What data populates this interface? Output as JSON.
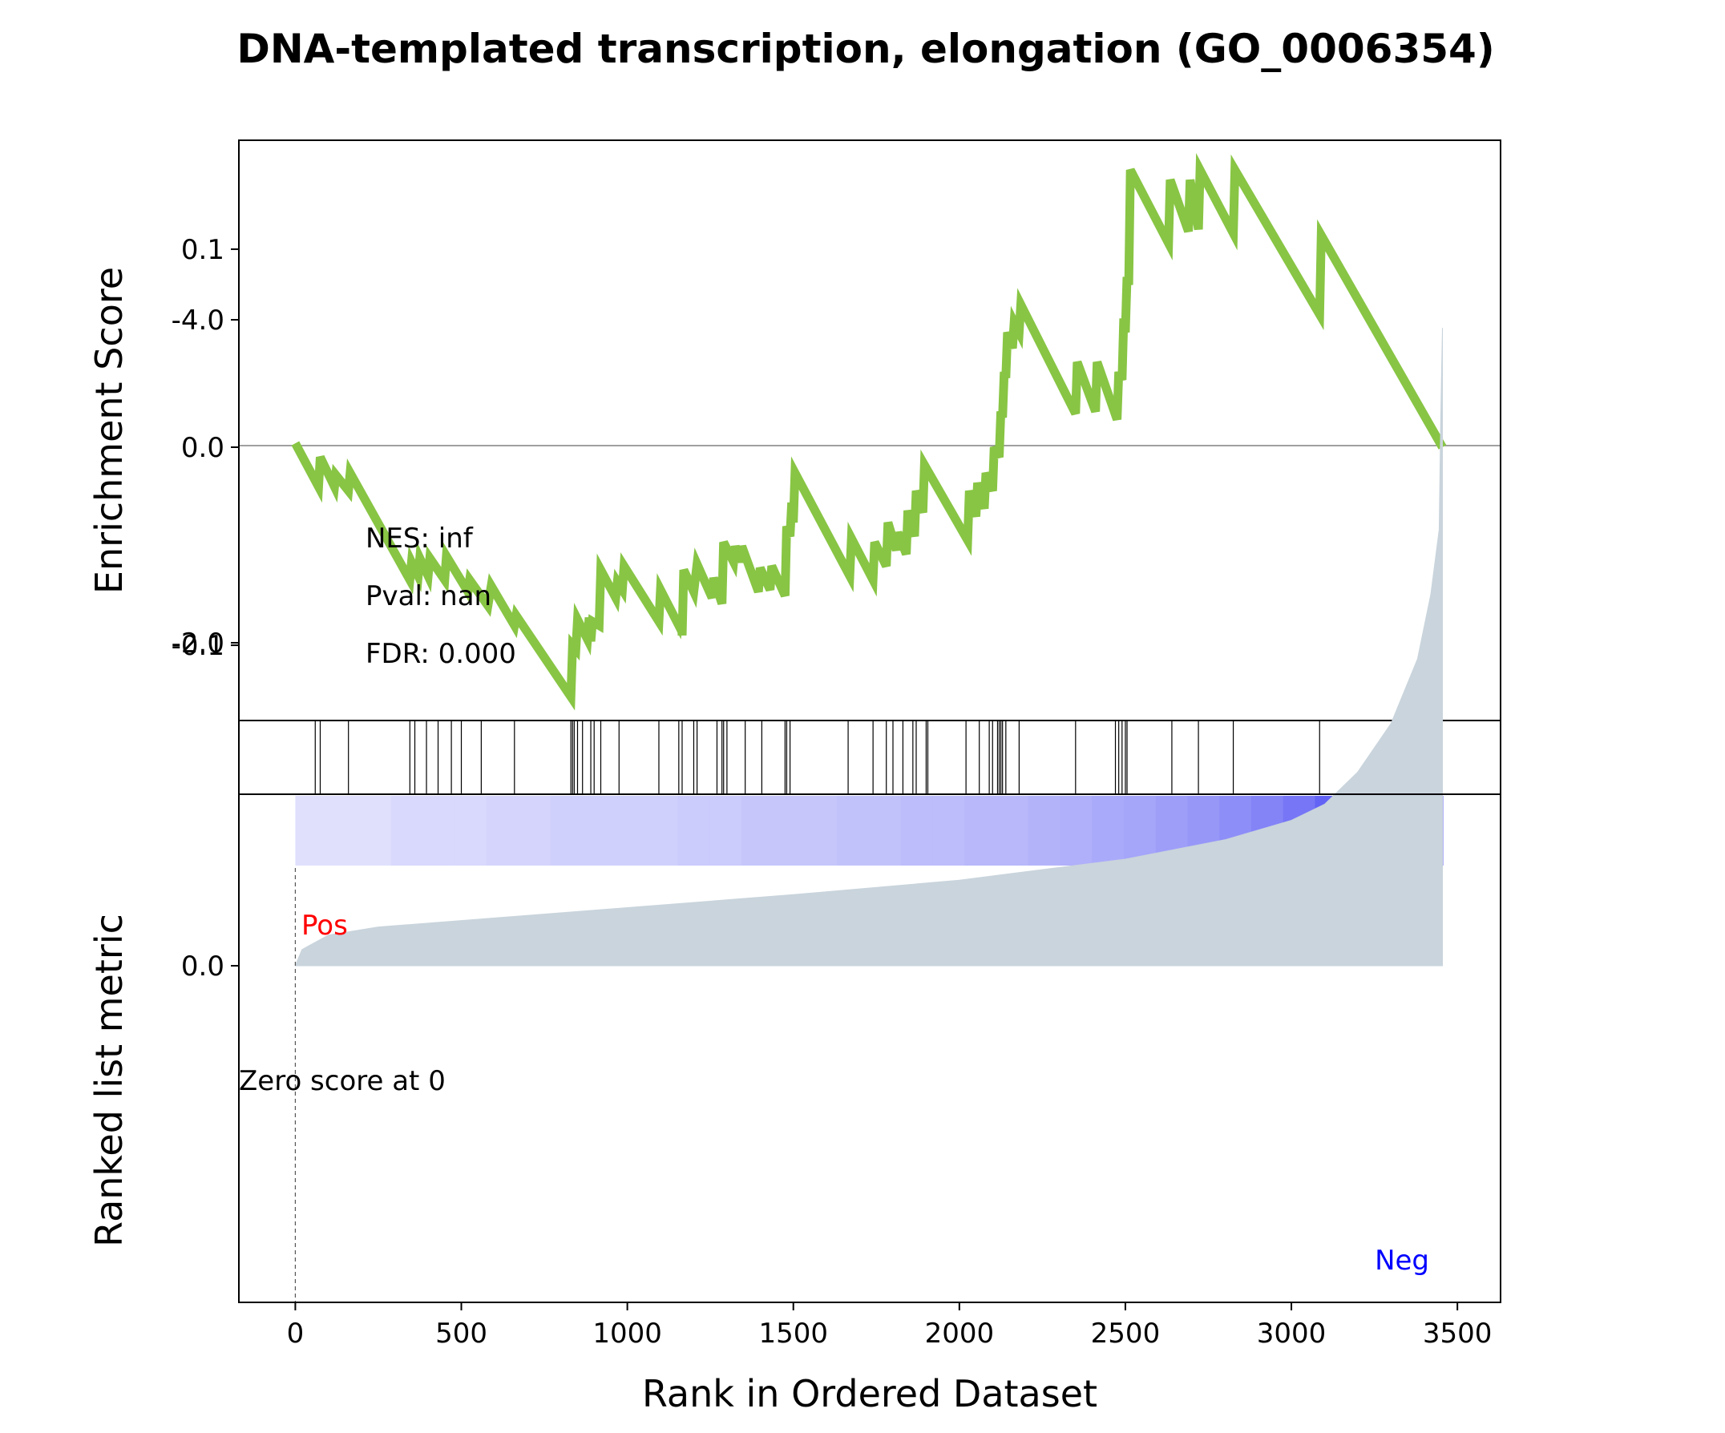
{
  "chart_data": {
    "type": "line",
    "title": "DNA-templated transcription, elongation (GO_0006354)",
    "xlabel": "Rank in Ordered Dataset",
    "x_ticks": [
      "0",
      "500",
      "1000",
      "1500",
      "2000",
      "2500",
      "3000",
      "3500"
    ],
    "x_tick_values": [
      0,
      500,
      1000,
      1500,
      2000,
      2500,
      3000,
      3500
    ],
    "xlim": [
      -170,
      3630
    ],
    "colors": {
      "es_line": "#88c544",
      "rank_fill": "#c9d4dc",
      "pos": "#ff0000",
      "neg": "#0000ff",
      "heat_start": "#ececfe",
      "heat_end": "#0000ee"
    },
    "es_panel": {
      "ylabel": "Enrichment Score",
      "y_ticks": [
        "0.1",
        "0.0",
        "-0.1"
      ],
      "y_tick_values": [
        0.1,
        0.0,
        -0.1
      ],
      "ylim": [
        -0.138,
        0.155
      ],
      "annotations": [
        "NES: inf",
        "Pval: nan",
        "FDR: 0.000"
      ],
      "points": [
        [
          0,
          0.002
        ],
        [
          70,
          -0.02
        ],
        [
          75,
          -0.005
        ],
        [
          118,
          -0.02
        ],
        [
          122,
          -0.014
        ],
        [
          160,
          -0.022
        ],
        [
          165,
          -0.013
        ],
        [
          345,
          -0.067
        ],
        [
          350,
          -0.058
        ],
        [
          370,
          -0.065
        ],
        [
          375,
          -0.056
        ],
        [
          400,
          -0.065
        ],
        [
          405,
          -0.056
        ],
        [
          450,
          -0.067
        ],
        [
          455,
          -0.055
        ],
        [
          520,
          -0.073
        ],
        [
          525,
          -0.067
        ],
        [
          580,
          -0.08
        ],
        [
          590,
          -0.07
        ],
        [
          660,
          -0.09
        ],
        [
          665,
          -0.085
        ],
        [
          830,
          -0.126
        ],
        [
          835,
          -0.1
        ],
        [
          845,
          -0.102
        ],
        [
          850,
          -0.087
        ],
        [
          880,
          -0.097
        ],
        [
          885,
          -0.086
        ],
        [
          890,
          -0.098
        ],
        [
          895,
          -0.088
        ],
        [
          915,
          -0.09
        ],
        [
          920,
          -0.062
        ],
        [
          965,
          -0.076
        ],
        [
          970,
          -0.068
        ],
        [
          985,
          -0.072
        ],
        [
          990,
          -0.06
        ],
        [
          1095,
          -0.088
        ],
        [
          1100,
          -0.072
        ],
        [
          1155,
          -0.09
        ],
        [
          1160,
          -0.085
        ],
        [
          1165,
          -0.095
        ],
        [
          1170,
          -0.062
        ],
        [
          1200,
          -0.073
        ],
        [
          1210,
          -0.059
        ],
        [
          1255,
          -0.076
        ],
        [
          1260,
          -0.066
        ],
        [
          1285,
          -0.079
        ],
        [
          1290,
          -0.048
        ],
        [
          1320,
          -0.058
        ],
        [
          1325,
          -0.05
        ],
        [
          1340,
          -0.058
        ],
        [
          1345,
          -0.05
        ],
        [
          1395,
          -0.073
        ],
        [
          1400,
          -0.061
        ],
        [
          1430,
          -0.072
        ],
        [
          1435,
          -0.06
        ],
        [
          1475,
          -0.075
        ],
        [
          1480,
          -0.04
        ],
        [
          1490,
          -0.045
        ],
        [
          1495,
          -0.028
        ],
        [
          1500,
          -0.038
        ],
        [
          1505,
          -0.013
        ],
        [
          1670,
          -0.065
        ],
        [
          1675,
          -0.046
        ],
        [
          1740,
          -0.067
        ],
        [
          1745,
          -0.048
        ],
        [
          1780,
          -0.06
        ],
        [
          1785,
          -0.038
        ],
        [
          1810,
          -0.052
        ],
        [
          1815,
          -0.043
        ],
        [
          1840,
          -0.054
        ],
        [
          1845,
          -0.032
        ],
        [
          1865,
          -0.045
        ],
        [
          1870,
          -0.022
        ],
        [
          1890,
          -0.033
        ],
        [
          1895,
          -0.009
        ],
        [
          2025,
          -0.047
        ],
        [
          2030,
          -0.022
        ],
        [
          2050,
          -0.035
        ],
        [
          2055,
          -0.018
        ],
        [
          2075,
          -0.031
        ],
        [
          2080,
          -0.013
        ],
        [
          2100,
          -0.022
        ],
        [
          2105,
          0.0
        ],
        [
          2120,
          -0.005
        ],
        [
          2125,
          0.018
        ],
        [
          2130,
          0.015
        ],
        [
          2135,
          0.038
        ],
        [
          2140,
          0.035
        ],
        [
          2145,
          0.058
        ],
        [
          2160,
          0.05
        ],
        [
          2165,
          0.063
        ],
        [
          2180,
          0.058
        ],
        [
          2185,
          0.072
        ],
        [
          2350,
          0.017
        ],
        [
          2355,
          0.043
        ],
        [
          2410,
          0.018
        ],
        [
          2415,
          0.043
        ],
        [
          2475,
          0.014
        ],
        [
          2480,
          0.038
        ],
        [
          2490,
          0.034
        ],
        [
          2495,
          0.065
        ],
        [
          2500,
          0.058
        ],
        [
          2505,
          0.086
        ],
        [
          2510,
          0.082
        ],
        [
          2515,
          0.14
        ],
        [
          2630,
          0.103
        ],
        [
          2635,
          0.135
        ],
        [
          2690,
          0.109
        ],
        [
          2695,
          0.135
        ],
        [
          2720,
          0.11
        ],
        [
          2725,
          0.14
        ],
        [
          2825,
          0.108
        ],
        [
          2830,
          0.14
        ],
        [
          3085,
          0.067
        ],
        [
          3090,
          0.107
        ],
        [
          3455,
          0.0
        ]
      ]
    },
    "hits": [
      60,
      75,
      160,
      345,
      360,
      395,
      430,
      470,
      500,
      560,
      660,
      830,
      835,
      840,
      850,
      865,
      890,
      900,
      920,
      975,
      1095,
      1155,
      1165,
      1200,
      1210,
      1270,
      1285,
      1290,
      1300,
      1355,
      1405,
      1475,
      1480,
      1490,
      1665,
      1740,
      1780,
      1800,
      1830,
      1860,
      1870,
      1900,
      1905,
      2020,
      2060,
      2090,
      2100,
      2115,
      2120,
      2125,
      2130,
      2140,
      2180,
      2350,
      2470,
      2480,
      2490,
      2500,
      2505,
      2640,
      2720,
      2825,
      3085
    ],
    "rank_panel": {
      "ylabel": "Ranked list metric",
      "y_ticks": [
        "0.0",
        "-2.0",
        "-4.0"
      ],
      "y_tick_values": [
        0.0,
        -2.0,
        -4.0
      ],
      "ylim": [
        -4.06,
        0.0
      ],
      "pos_label": "Pos",
      "neg_label": "Neg",
      "zero_label": "Zero score at 0",
      "zero_rank": 0,
      "n": 3455,
      "metric": [
        [
          0,
          0.0
        ],
        [
          20,
          -0.1
        ],
        [
          100,
          -0.19
        ],
        [
          250,
          -0.24
        ],
        [
          500,
          -0.28
        ],
        [
          1000,
          -0.36
        ],
        [
          1500,
          -0.44
        ],
        [
          2000,
          -0.53
        ],
        [
          2500,
          -0.66
        ],
        [
          2800,
          -0.78
        ],
        [
          3000,
          -0.9
        ],
        [
          3100,
          -1.0
        ],
        [
          3200,
          -1.2
        ],
        [
          3300,
          -1.5
        ],
        [
          3380,
          -1.9
        ],
        [
          3420,
          -2.3
        ],
        [
          3445,
          -2.7
        ],
        [
          3450,
          -3.4
        ],
        [
          3455,
          -3.95
        ]
      ],
      "heat_levels": [
        0.05,
        0.05,
        0.05,
        0.08,
        0.08,
        0.08,
        0.1,
        0.1,
        0.12,
        0.12,
        0.12,
        0.12,
        0.14,
        0.14,
        0.16,
        0.16,
        0.16,
        0.18,
        0.18,
        0.2,
        0.2,
        0.22,
        0.22,
        0.24,
        0.26,
        0.28,
        0.3,
        0.33,
        0.36,
        0.4,
        0.44,
        0.5,
        0.58,
        0.68,
        0.8,
        1.0
      ]
    }
  }
}
